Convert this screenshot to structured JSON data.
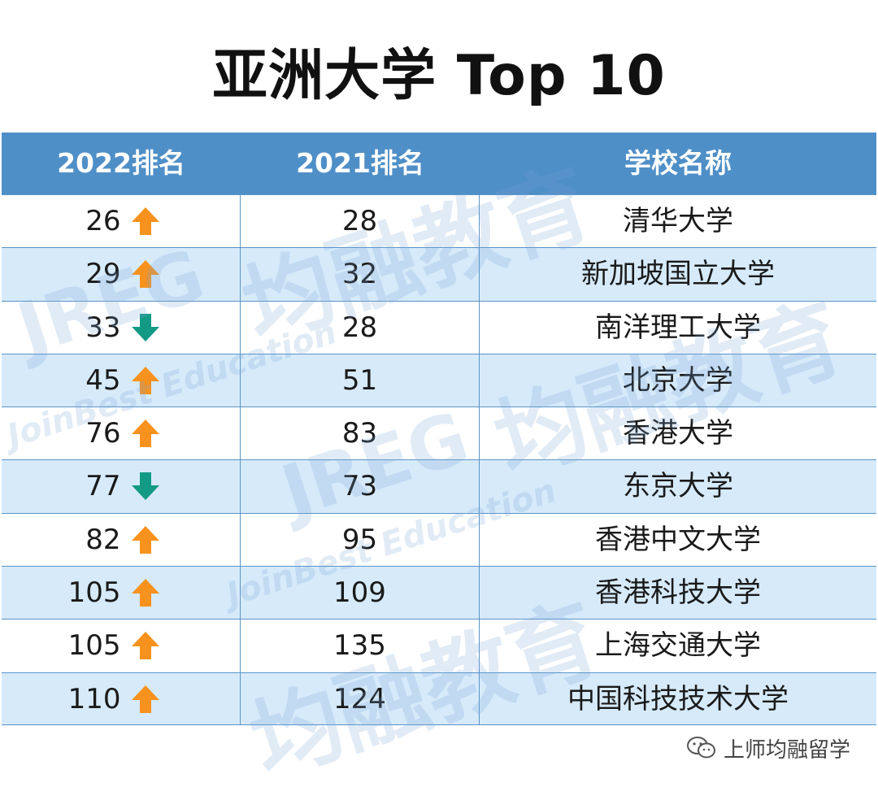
{
  "title": "亚洲大学 Top 10",
  "columns": [
    "2022排名",
    "2021排名",
    "学校名称"
  ],
  "colors": {
    "header_bg": "#4f8fc7",
    "row_alt": "#d6eafa",
    "arrow_up": "#f7921e",
    "arrow_down": "#139a84"
  },
  "rows": [
    {
      "rank_2022": "26",
      "trend": "up",
      "rank_2021": "28",
      "school": "清华大学"
    },
    {
      "rank_2022": "29",
      "trend": "up",
      "rank_2021": "32",
      "school": "新加坡国立大学"
    },
    {
      "rank_2022": "33",
      "trend": "down",
      "rank_2021": "28",
      "school": "南洋理工大学"
    },
    {
      "rank_2022": "45",
      "trend": "up",
      "rank_2021": "51",
      "school": "北京大学"
    },
    {
      "rank_2022": "76",
      "trend": "up",
      "rank_2021": "83",
      "school": "香港大学"
    },
    {
      "rank_2022": "77",
      "trend": "down",
      "rank_2021": "73",
      "school": "东京大学"
    },
    {
      "rank_2022": "82",
      "trend": "up",
      "rank_2021": "95",
      "school": "香港中文大学"
    },
    {
      "rank_2022": "105",
      "trend": "up",
      "rank_2021": "109",
      "school": "香港科技大学"
    },
    {
      "rank_2022": "105",
      "trend": "up",
      "rank_2021": "135",
      "school": "上海交通大学"
    },
    {
      "rank_2022": "110",
      "trend": "up",
      "rank_2021": "124",
      "school": "中国科技技术大学"
    }
  ],
  "watermark": {
    "cn": "均融教育",
    "logo": "JREG",
    "tagline": "JoinBest Education"
  },
  "footer": {
    "icon": "wechat-icon",
    "text": "上师均融留学"
  }
}
